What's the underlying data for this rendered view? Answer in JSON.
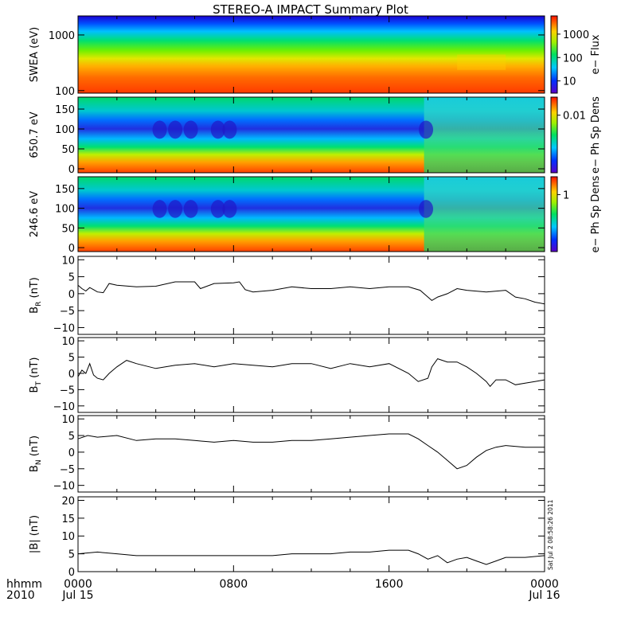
{
  "chart_data": [
    {
      "type": "heatmap",
      "title": "STEREO-A IMPACT Summary Plot",
      "ylabel": "SWEA (eV)",
      "yscale": "log",
      "ylim": [
        90,
        2200
      ],
      "yticks": [
        100,
        1000
      ],
      "ytick_labels": [
        "100",
        "1000"
      ],
      "colorbar": {
        "label": "e− Flux",
        "scale": "log",
        "ticks": [
          10,
          100,
          1000
        ],
        "tick_labels": [
          "10",
          "100",
          "1000"
        ]
      },
      "x": [
        "0000",
        "0800",
        "1600",
        "0000"
      ]
    },
    {
      "type": "heatmap",
      "ylabel": "650.7 eV",
      "ylim": [
        -10,
        180
      ],
      "yticks": [
        0,
        50,
        100,
        150
      ],
      "ytick_labels": [
        "0",
        "50",
        "100",
        "150"
      ],
      "colorbar": {
        "label": "e− Ph Sp Dens",
        "scale": "log",
        "ticks": [
          0.01
        ],
        "tick_labels": [
          "0.01"
        ]
      },
      "x": [
        "0000",
        "0800",
        "1600",
        "0000"
      ]
    },
    {
      "type": "heatmap",
      "ylabel": "246.6 eV",
      "ylim": [
        -10,
        180
      ],
      "yticks": [
        0,
        50,
        100,
        150
      ],
      "ytick_labels": [
        "0",
        "50",
        "100",
        "150"
      ],
      "colorbar": {
        "label": "e− Ph Sp Dens",
        "scale": "log",
        "ticks": [
          1
        ],
        "tick_labels": [
          "1"
        ]
      },
      "x": [
        "0000",
        "0800",
        "1600",
        "0000"
      ]
    },
    {
      "type": "line",
      "ylabel": "B",
      "ylabel_sub": "R",
      "ylabel_unit": " (nT)",
      "ylim": [
        -12,
        11
      ],
      "yticks": [
        -10,
        -5,
        0,
        5,
        10
      ],
      "ytick_labels": [
        "−10",
        "−5",
        "0",
        "5",
        "10"
      ],
      "x_hours": [
        0,
        0.2,
        0.4,
        0.6,
        0.8,
        1.0,
        1.3,
        1.6,
        2,
        3,
        4,
        5,
        6,
        6.3,
        7,
        8,
        8.3,
        8.6,
        9,
        10,
        11,
        12,
        13,
        14,
        15,
        16,
        17,
        17.6,
        18,
        18.2,
        18.5,
        19,
        19.5,
        20,
        21,
        22,
        22.5,
        23,
        23.5,
        24
      ],
      "y": [
        2.5,
        1.5,
        0.8,
        1.8,
        1.2,
        0.5,
        0.3,
        3,
        2.5,
        2,
        2.2,
        3.5,
        3.5,
        1.5,
        3,
        3.2,
        3.5,
        1.2,
        0.5,
        1,
        2,
        1.5,
        1.5,
        2,
        1.5,
        2,
        2,
        1,
        -1,
        -2,
        -1,
        0,
        1.5,
        1,
        0.5,
        1,
        -1,
        -1.5,
        -2.5,
        -3
      ]
    },
    {
      "type": "line",
      "ylabel": "B",
      "ylabel_sub": "T",
      "ylabel_unit": " (nT)",
      "ylim": [
        -12,
        11
      ],
      "yticks": [
        -10,
        -5,
        0,
        5,
        10
      ],
      "ytick_labels": [
        "−10",
        "−5",
        "0",
        "5",
        "10"
      ],
      "x_hours": [
        0,
        0.2,
        0.4,
        0.6,
        0.8,
        1.0,
        1.3,
        1.6,
        2,
        2.5,
        3,
        4,
        5,
        6,
        7,
        8,
        9,
        10,
        11,
        12,
        13,
        14,
        15,
        16,
        17,
        17.5,
        18,
        18.2,
        18.5,
        19,
        19.5,
        20,
        20.5,
        21,
        21.2,
        21.5,
        22,
        22.5,
        23,
        23.5,
        24
      ],
      "y": [
        -1,
        1,
        0,
        3,
        -0.5,
        -1.5,
        -2,
        0,
        2,
        4,
        3,
        1.5,
        2.5,
        3,
        2,
        3,
        2.5,
        2,
        3,
        3,
        1.5,
        3,
        2,
        3,
        0,
        -2.5,
        -1.5,
        2,
        4.5,
        3.5,
        3.5,
        2,
        0,
        -2.5,
        -4,
        -2,
        -2,
        -3.5,
        -3,
        -2.5,
        -2
      ]
    },
    {
      "type": "line",
      "ylabel": "B",
      "ylabel_sub": "N",
      "ylabel_unit": " (nT)",
      "ylim": [
        -12,
        11
      ],
      "yticks": [
        -10,
        -5,
        0,
        5,
        10
      ],
      "ytick_labels": [
        "−10",
        "−5",
        "0",
        "5",
        "10"
      ],
      "x_hours": [
        0,
        0.5,
        1,
        2,
        3,
        4,
        5,
        6,
        7,
        8,
        9,
        10,
        11,
        12,
        13,
        14,
        15,
        16,
        17,
        17.5,
        18,
        18.5,
        19,
        19.5,
        20,
        20.5,
        21,
        21.5,
        22,
        23,
        24
      ],
      "y": [
        4,
        5,
        4.5,
        5,
        3.5,
        4,
        4,
        3.5,
        3,
        3.5,
        3,
        3,
        3.5,
        3.5,
        4,
        4.5,
        5,
        5.5,
        5.5,
        4,
        2,
        0,
        -2.5,
        -5,
        -4,
        -1.5,
        0.5,
        1.5,
        2,
        1.5,
        1.5
      ]
    },
    {
      "type": "line",
      "ylabel": "|B| (nT)",
      "ylim": [
        0,
        21
      ],
      "yticks": [
        0,
        5,
        10,
        15,
        20
      ],
      "ytick_labels": [
        "0",
        "5",
        "10",
        "15",
        "20"
      ],
      "x_hours": [
        0,
        1,
        2,
        3,
        4,
        5,
        6,
        7,
        8,
        9,
        10,
        11,
        12,
        13,
        14,
        15,
        16,
        17,
        17.5,
        18,
        18.5,
        19,
        19.5,
        20,
        20.5,
        21,
        21.5,
        22,
        23,
        24
      ],
      "y": [
        5,
        5.5,
        5,
        4.5,
        4.5,
        4.5,
        4.5,
        4.5,
        4.5,
        4.5,
        4.5,
        5,
        5,
        5,
        5.5,
        5.5,
        6,
        6,
        5,
        3.5,
        4.5,
        2.5,
        3.5,
        4,
        3,
        2,
        3,
        4,
        4,
        4.5
      ]
    }
  ],
  "x_axis": {
    "header": [
      "hhmm",
      "2010"
    ],
    "ticks": [
      {
        "hour": 0,
        "label": "0000",
        "date": "Jul 15"
      },
      {
        "hour": 8,
        "label": "0800",
        "date": ""
      },
      {
        "hour": 16,
        "label": "1600",
        "date": ""
      },
      {
        "hour": 24,
        "label": "0000",
        "date": "Jul 16"
      }
    ]
  },
  "timestamp": "Sat Jul  2 08:58:26 2011"
}
